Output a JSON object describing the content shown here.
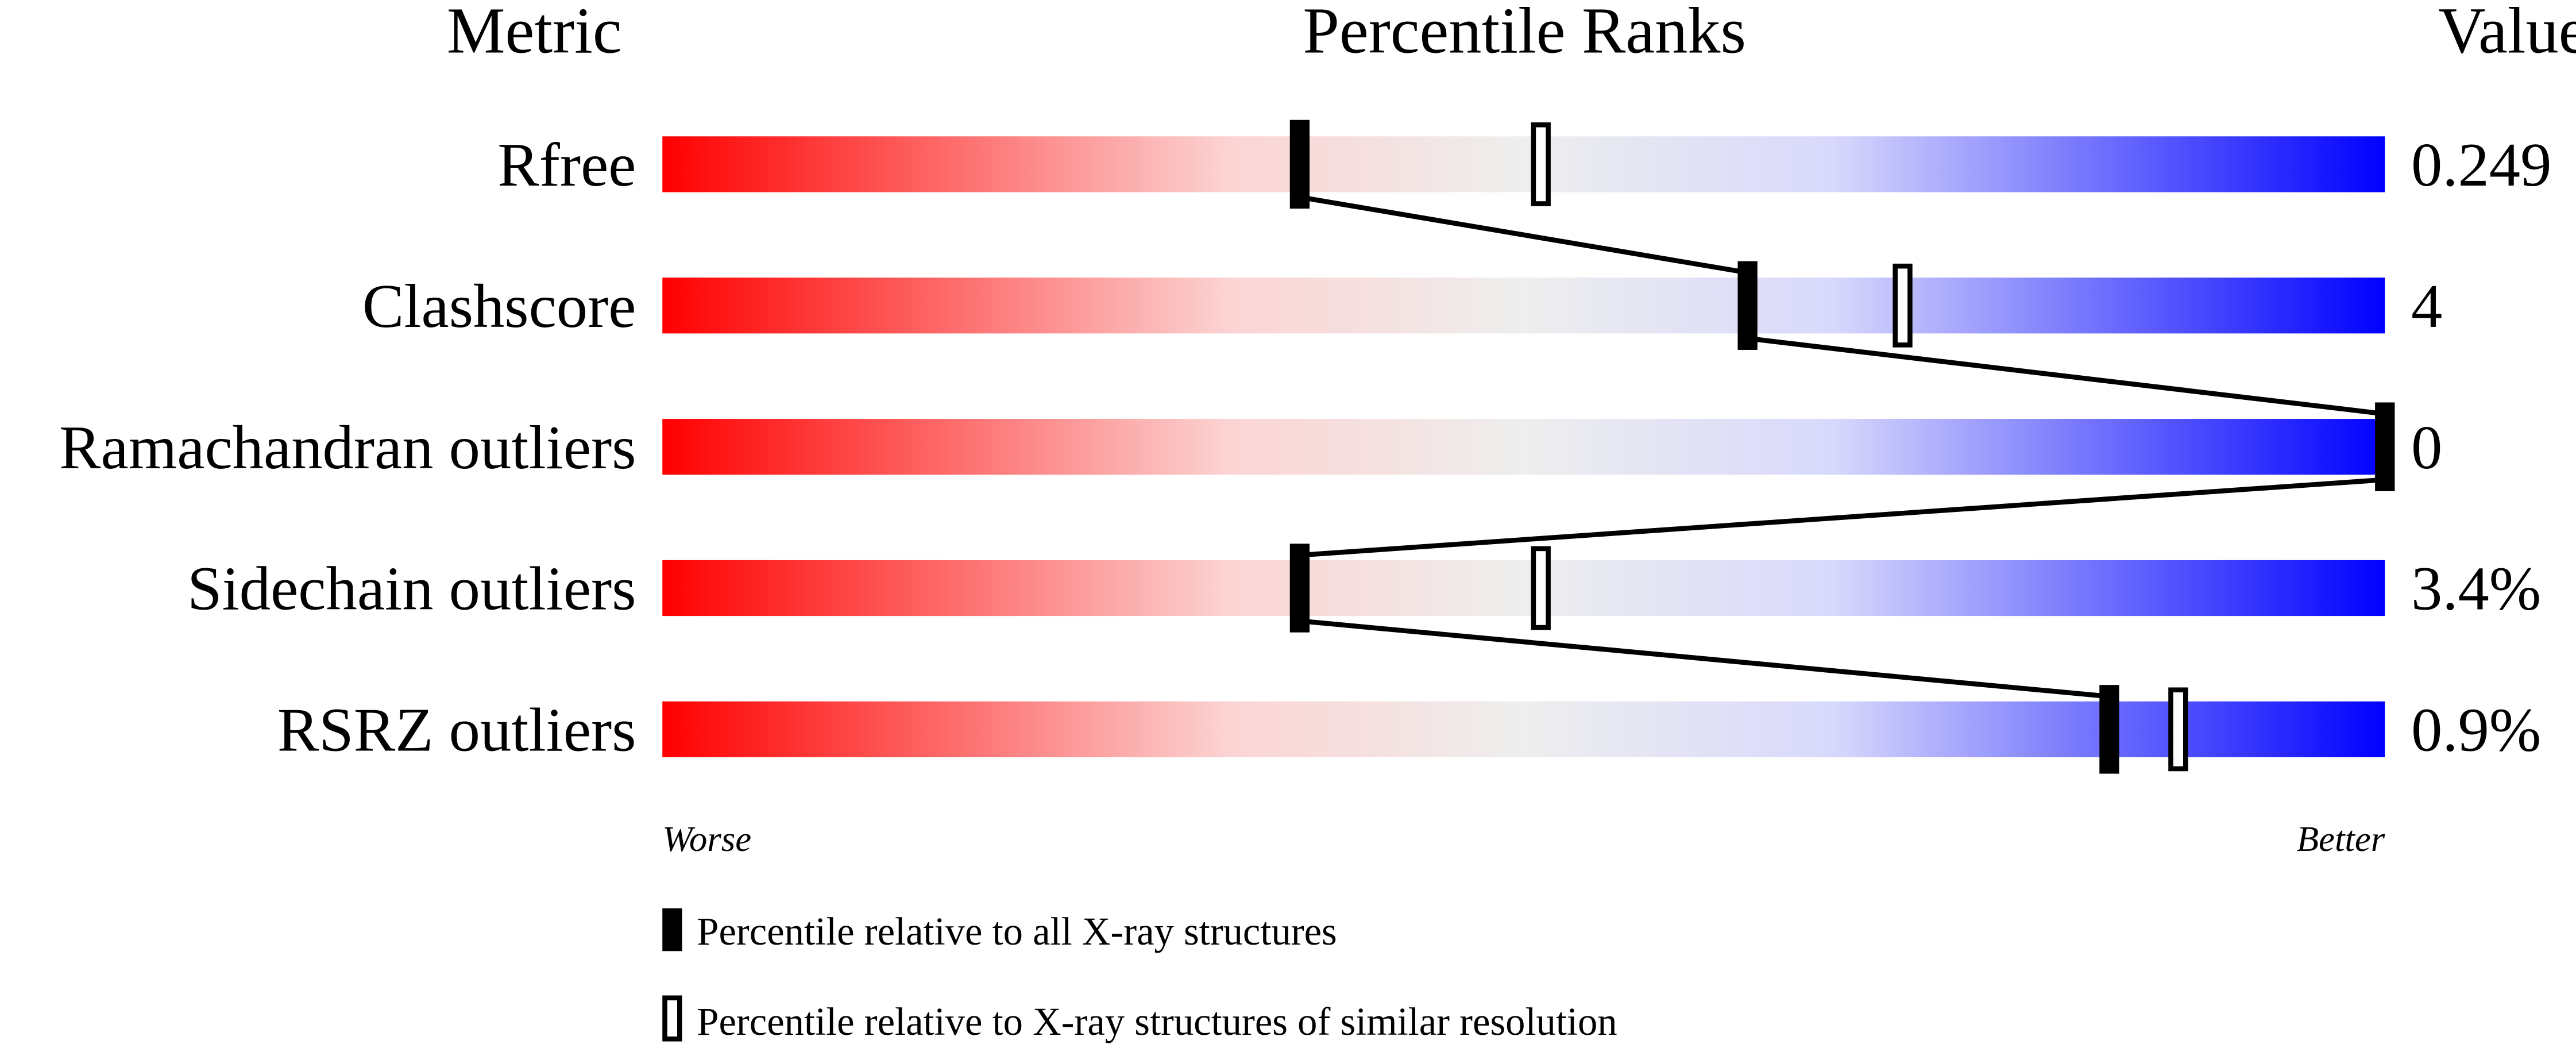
{
  "chart_data": {
    "type": "bar",
    "headers": {
      "metric": "Metric",
      "ranks": "Percentile Ranks",
      "value": "Value"
    },
    "xlim": [
      0,
      100
    ],
    "axis_labels": {
      "left": "Worse",
      "right": "Better"
    },
    "metrics": [
      {
        "name": "Rfree",
        "value": "0.249",
        "percentile_all": 37,
        "percentile_similar": 51
      },
      {
        "name": "Clashscore",
        "value": "4",
        "percentile_all": 63,
        "percentile_similar": 72
      },
      {
        "name": "Ramachandran outliers",
        "value": "0",
        "percentile_all": 100,
        "percentile_similar": 100
      },
      {
        "name": "Sidechain outliers",
        "value": "3.4%",
        "percentile_all": 37,
        "percentile_similar": 51
      },
      {
        "name": "RSRZ outliers",
        "value": "0.9%",
        "percentile_all": 84,
        "percentile_similar": 88
      }
    ],
    "legend": [
      {
        "marker": "filled",
        "label": "Percentile relative to all X-ray structures"
      },
      {
        "marker": "open",
        "label": "Percentile relative to X-ray structures of similar resolution"
      }
    ],
    "gradient_colors": [
      "#ff0000",
      "#fcd4d4",
      "#eeeeee",
      "#d8d8fc",
      "#0000ff"
    ]
  }
}
